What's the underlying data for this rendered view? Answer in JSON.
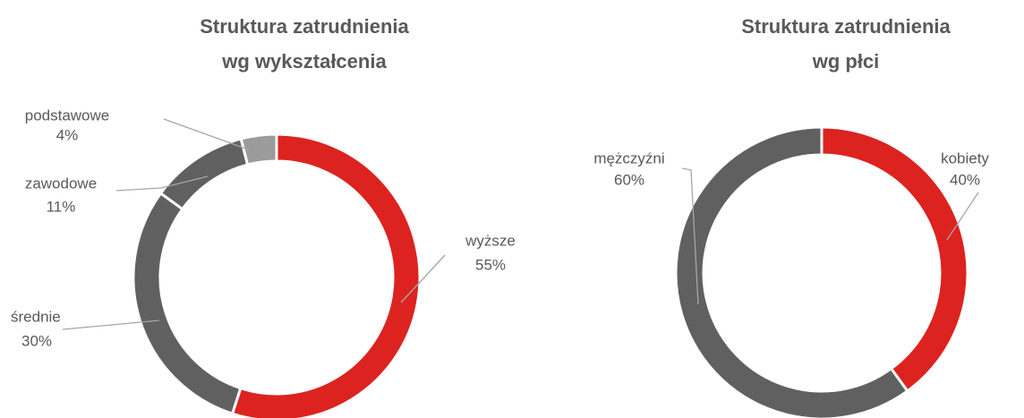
{
  "chart_data": [
    {
      "type": "pie",
      "donut": true,
      "title": [
        "Struktura zatrudnienia",
        "wg wykształcenia"
      ],
      "categories": [
        "wyższe",
        "średnie",
        "zawodowe",
        "podstawowe"
      ],
      "values": [
        55,
        30,
        11,
        4
      ],
      "value_labels": [
        "55%",
        "30%",
        "11%",
        "4%"
      ],
      "colors": [
        "#dc231f",
        "#606060",
        "#606060",
        "#9b9b9b"
      ]
    },
    {
      "type": "pie",
      "donut": true,
      "title": [
        "Struktura zatrudnienia",
        "wg płci"
      ],
      "categories": [
        "kobiety",
        "mężczyźni"
      ],
      "values": [
        40,
        60
      ],
      "value_labels": [
        "40%",
        "60%"
      ],
      "colors": [
        "#dc231f",
        "#606060"
      ]
    }
  ]
}
